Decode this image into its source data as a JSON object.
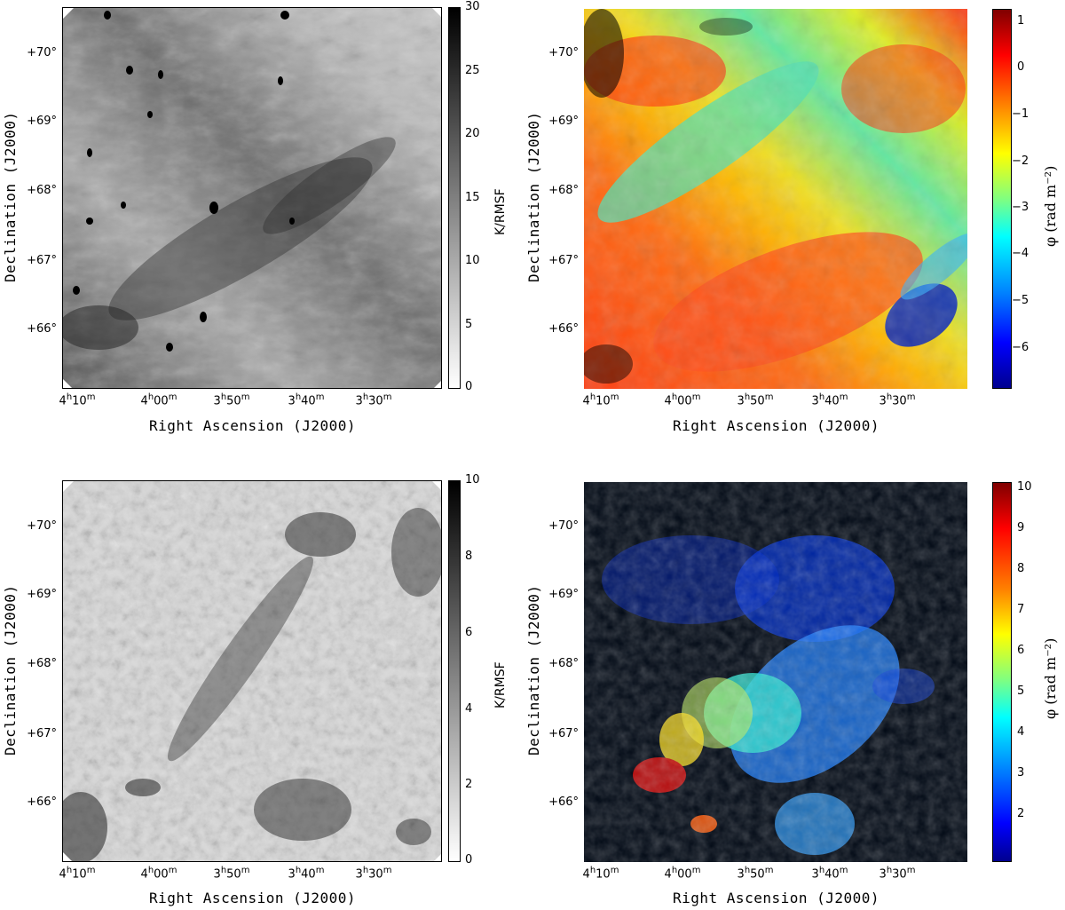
{
  "panels": [
    {
      "colorbar": {
        "label": "K/RMSF",
        "ticks": [
          "30",
          "25",
          "20",
          "15",
          "10",
          "5",
          "0"
        ],
        "cmap": "grayscale",
        "range": [
          0,
          30
        ]
      },
      "y_ticks": [
        "+70°",
        "+69°",
        "+68°",
        "+67°",
        "+66°"
      ],
      "x_ticks": [
        "4h10m",
        "4h00m",
        "3h50m",
        "3h40m",
        "3h30m"
      ],
      "xlabel": "Right Ascension (J2000)",
      "ylabel": "Declination (J2000)"
    },
    {
      "colorbar": {
        "label": "φ (rad m⁻²)",
        "ticks": [
          "1",
          "0",
          "−1",
          "−2",
          "−3",
          "−4",
          "−5",
          "−6"
        ],
        "cmap": "jet",
        "range": [
          -7,
          1.2
        ]
      },
      "y_ticks": [
        "+70°",
        "+69°",
        "+68°",
        "+67°",
        "+66°"
      ],
      "x_ticks": [
        "4h10m",
        "4h00m",
        "3h50m",
        "3h40m",
        "3h30m"
      ],
      "xlabel": "Right Ascension (J2000)",
      "ylabel": "Declination (J2000)"
    },
    {
      "colorbar": {
        "label": "K/RMSF",
        "ticks": [
          "10",
          "8",
          "6",
          "4",
          "2",
          "0"
        ],
        "cmap": "grayscale",
        "range": [
          0,
          10
        ]
      },
      "y_ticks": [
        "+70°",
        "+69°",
        "+68°",
        "+67°",
        "+66°"
      ],
      "x_ticks": [
        "4h10m",
        "4h00m",
        "3h50m",
        "3h40m",
        "3h30m"
      ],
      "xlabel": "Right Ascension (J2000)",
      "ylabel": "Declination (J2000)"
    },
    {
      "colorbar": {
        "label": "φ (rad m⁻²)",
        "ticks": [
          "10",
          "9",
          "8",
          "7",
          "6",
          "5",
          "4",
          "3",
          "2"
        ],
        "cmap": "jet",
        "range": [
          1.5,
          10.8
        ]
      },
      "y_ticks": [
        "+70°",
        "+69°",
        "+68°",
        "+67°",
        "+66°"
      ],
      "x_ticks": [
        "4h10m",
        "4h00m",
        "3h50m",
        "3h40m",
        "3h30m"
      ],
      "xlabel": "Right Ascension (J2000)",
      "ylabel": "Declination (J2000)"
    }
  ]
}
